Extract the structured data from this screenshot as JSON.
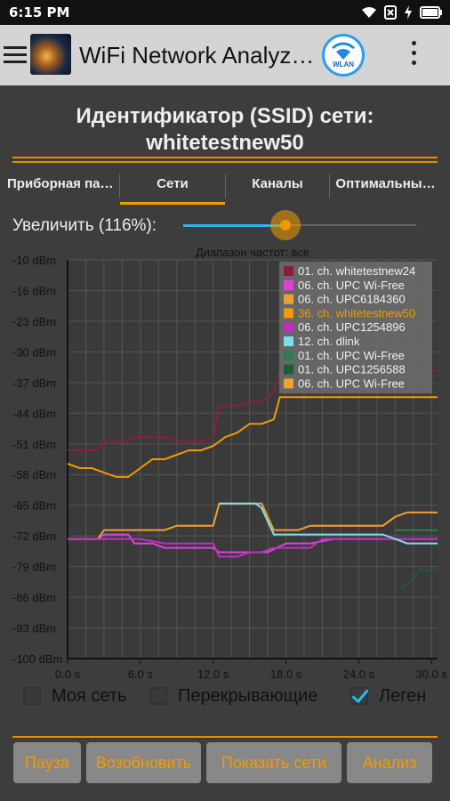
{
  "status_bar": {
    "time": "6:15 PM",
    "icons": [
      "wifi-icon",
      "no-sim-icon",
      "charging-icon",
      "battery-icon"
    ]
  },
  "app_bar": {
    "title": "WiFi Network Analyz…",
    "wlan_label": "WLAN"
  },
  "ssid": {
    "line1": "Идентификатор (SSID) сети:",
    "line2": "whitetestnew50"
  },
  "tabs": [
    {
      "label": "Приборная па…",
      "active": false
    },
    {
      "label": "Сети",
      "active": true
    },
    {
      "label": "Каналы",
      "active": false
    },
    {
      "label": "Оптимальны…",
      "active": false
    }
  ],
  "zoom": {
    "label": "Увеличить (116%):",
    "value": 0.44
  },
  "colors": {
    "accent": "#f29a00",
    "slider": "#29b6f6",
    "panel_bg": "#3d3d3d",
    "chart_bg": "#3a3a3a"
  },
  "chart_data": {
    "type": "line",
    "subtitle": "Диапазон частот: все",
    "ylabel_ticks": [
      "-10 dBm",
      "-16 dBm",
      "-23 dBm",
      "-30 dBm",
      "-37 dBm",
      "-44 dBm",
      "-51 dBm",
      "-58 dBm",
      "-65 dBm",
      "-72 dBm",
      "-79 dBm",
      "-86 dBm",
      "-93 dBm",
      "-100 dBm"
    ],
    "xlabel_ticks": [
      "0.0 s",
      "6.0 s",
      "12.0 s",
      "18.0 s",
      "24.0 s",
      "30.0 s"
    ],
    "xlim": [
      0,
      30.5
    ],
    "ylim": [
      -100,
      -10
    ],
    "grid": true,
    "legend_position": "top-right",
    "series": [
      {
        "name": "01. ch. whitetestnew24",
        "color": "#8b1e3f",
        "x": [
          0,
          2.5,
          3,
          5,
          5.5,
          8,
          9,
          11,
          12,
          12.5,
          14,
          15,
          16,
          17,
          17.5,
          30.5
        ],
        "y": [
          -53,
          -53,
          -51,
          -51,
          -50,
          -50,
          -51,
          -51,
          -50,
          -43,
          -43,
          -42,
          -42,
          -40,
          -35,
          -35
        ]
      },
      {
        "name": "06. ch. UPC Wi-Free",
        "color": "#e040e0",
        "x": [
          0,
          2.5,
          3,
          5,
          5.5,
          7,
          8,
          10,
          12,
          12.5,
          14,
          15,
          16,
          16.5,
          18,
          20,
          22,
          30.5
        ],
        "y": [
          -73,
          -73,
          -72,
          -72,
          -74,
          -74,
          -75,
          -75,
          -75,
          -76,
          -76,
          -76,
          -76,
          -76,
          -74,
          -74,
          -73,
          -73
        ]
      },
      {
        "name": "06. ch. UPC6184360",
        "color": "#f0a030",
        "x": [
          0,
          2.5,
          3,
          5,
          6,
          8,
          9,
          11,
          12,
          12.5,
          14,
          15,
          16,
          17,
          18,
          19,
          20,
          22,
          26,
          27,
          28,
          30.5
        ],
        "y": [
          -73,
          -73,
          -71,
          -71,
          -71,
          -71,
          -70,
          -70,
          -70,
          -65,
          -65,
          -65,
          -65,
          -71,
          -71,
          -71,
          -70,
          -70,
          -70,
          -68,
          -67,
          -67
        ]
      },
      {
        "name": "36. ch. whitetestnew50",
        "color": "#f29a00",
        "x": [
          0,
          1,
          2,
          3,
          4,
          5,
          6,
          7,
          8,
          9,
          10,
          11,
          12,
          13,
          14,
          15,
          16,
          17,
          17.5,
          30.5
        ],
        "y": [
          -56,
          -57,
          -57,
          -58,
          -59,
          -59,
          -57,
          -55,
          -55,
          -54,
          -53,
          -53,
          -52,
          -50,
          -49,
          -47,
          -47,
          -46,
          -41,
          -41
        ]
      },
      {
        "name": "06. ch. UPC1254896",
        "color": "#c030c0",
        "x": [
          0,
          2.5,
          3,
          5,
          6,
          8,
          9,
          11,
          12,
          12.5,
          14,
          15,
          16,
          17,
          18,
          20,
          21,
          22,
          30.5
        ],
        "y": [
          -73,
          -73,
          -73,
          -73,
          -73,
          -74,
          -74,
          -74,
          -74,
          -77,
          -77,
          -76,
          -76,
          -75,
          -75,
          -75,
          -73,
          -73,
          -73
        ]
      },
      {
        "name": "12. ch. dlink",
        "color": "#80deea",
        "x": [
          12.5,
          14,
          15,
          15.5,
          16,
          17,
          18,
          20,
          22,
          23,
          26,
          27,
          28,
          30.5
        ],
        "y": [
          -65,
          -65,
          -65,
          -65,
          -66,
          -72,
          -72,
          -72,
          -72,
          -72,
          -72,
          -73,
          -74,
          -74
        ]
      },
      {
        "name": "01. ch. UPC Wi-Free",
        "color": "#2e7d4f",
        "x": [
          27,
          27.5,
          28.5,
          30.5
        ],
        "y": [
          -71,
          -71,
          -71,
          -71
        ]
      },
      {
        "name": "01. ch. UPC1256588",
        "color": "#1b5e3a",
        "x": [
          27.5,
          28.5,
          29,
          30.5
        ],
        "y": [
          -84,
          -82,
          -80,
          -80
        ]
      },
      {
        "name": "06. ch. UPC Wi-Free",
        "color": "#f0a030",
        "x": [],
        "y": []
      }
    ]
  },
  "checkboxes": [
    {
      "label": "Моя сеть",
      "checked": false
    },
    {
      "label": "Перекрывающие",
      "checked": false
    },
    {
      "label": "Леген",
      "checked": true
    }
  ],
  "buttons": [
    "Пауза",
    "Возобновить",
    "Показать сети",
    "Анализ"
  ]
}
